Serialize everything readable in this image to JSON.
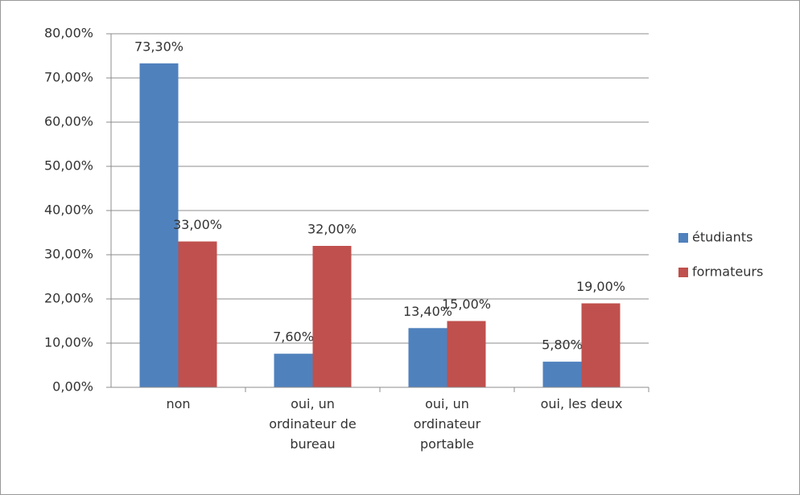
{
  "chart_data": {
    "type": "bar",
    "categories": [
      "non",
      "oui, un ordinateur de bureau",
      "oui, un ordinateur portable",
      "oui, les deux"
    ],
    "series": [
      {
        "name": "étudiants",
        "color": "#4f81bd",
        "values": [
          73.3,
          7.6,
          13.4,
          5.8
        ],
        "value_labels": [
          "73,30%",
          "7,60%",
          "13,40%",
          "5,80%"
        ]
      },
      {
        "name": "formateurs",
        "color": "#c0504d",
        "values": [
          33,
          32,
          15,
          19
        ],
        "value_labels": [
          "33,00%",
          "32,00%",
          "15,00%",
          "19,00%"
        ]
      }
    ],
    "ylim": [
      0,
      80
    ],
    "yticks": [
      {
        "value": 0,
        "label": "0,00%"
      },
      {
        "value": 10,
        "label": "10,00%"
      },
      {
        "value": 20,
        "label": "20,00%"
      },
      {
        "value": 30,
        "label": "30,00%"
      },
      {
        "value": 40,
        "label": "40,00%"
      },
      {
        "value": 50,
        "label": "50,00%"
      },
      {
        "value": 60,
        "label": "60,00%"
      },
      {
        "value": 70,
        "label": "70,00%"
      },
      {
        "value": 80,
        "label": "80,00%"
      }
    ],
    "grid": true,
    "legend": "right"
  }
}
